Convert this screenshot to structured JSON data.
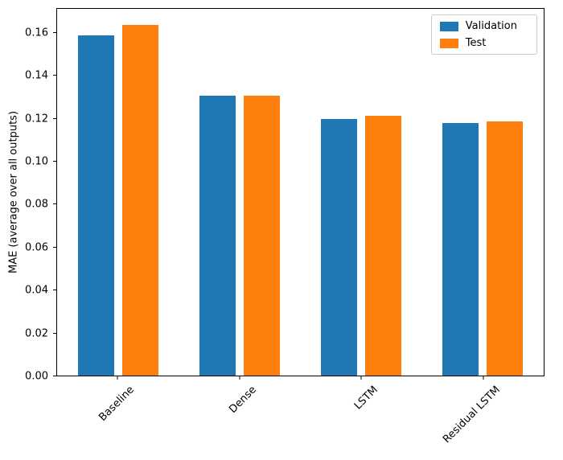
{
  "chart_data": {
    "type": "bar",
    "title": "",
    "xlabel": "",
    "ylabel": "MAE (average over all outputs)",
    "categories": [
      "Baseline",
      "Dense",
      "LSTM",
      "Residual LSTM"
    ],
    "series": [
      {
        "name": "Validation",
        "color": "#1f77b4",
        "values": [
          0.159,
          0.131,
          0.12,
          0.118
        ]
      },
      {
        "name": "Test",
        "color": "#ff7f0e",
        "values": [
          0.164,
          0.131,
          0.1215,
          0.119
        ]
      }
    ],
    "ylim": [
      0,
      0.1716
    ],
    "yticks": [
      0.0,
      0.02,
      0.04,
      0.06,
      0.08,
      0.1,
      0.12,
      0.14,
      0.16
    ],
    "ytick_labels": [
      "0.00",
      "0.02",
      "0.04",
      "0.06",
      "0.08",
      "0.10",
      "0.12",
      "0.14",
      "0.16"
    ],
    "grid": false,
    "legend_position": "upper right",
    "xtick_rotation": 45
  }
}
